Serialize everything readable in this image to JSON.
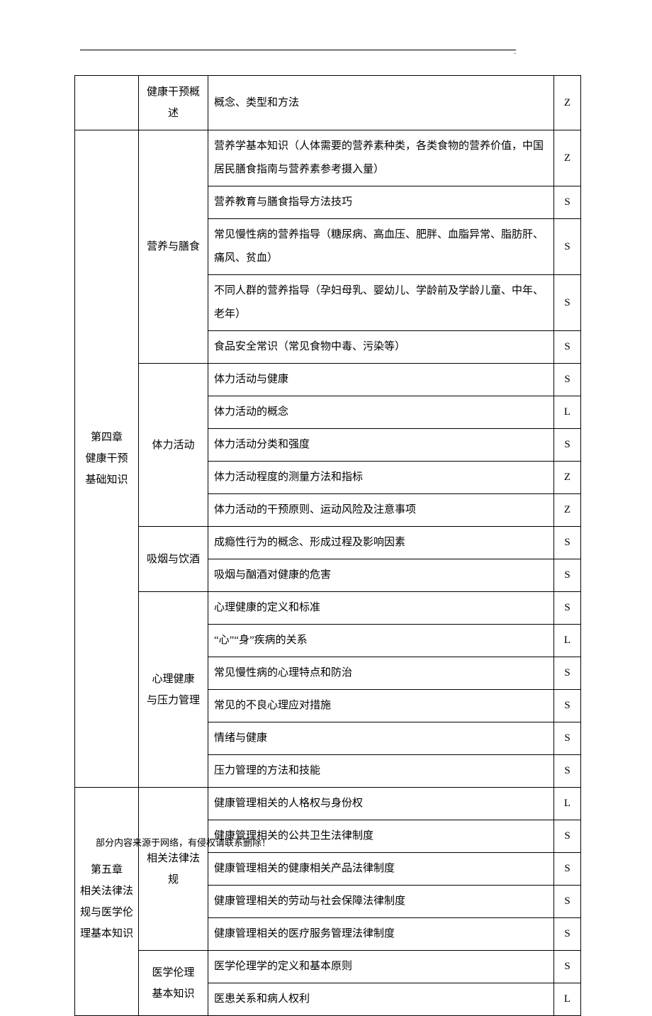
{
  "header": {
    "dot": "."
  },
  "table": {
    "rows": [
      {
        "chapter": "",
        "section": "健康干预概述",
        "content": "概念、类型和方法",
        "code": "Z",
        "chapter_rowspan": 1,
        "section_rowspan": 1
      },
      {
        "chapter": "第四章\n健康干预\n基础知识",
        "section": "营养与膳食",
        "content": "营养学基本知识（人体需要的营养素种类，各类食物的营养价值，中国居民膳食指南与营养素参考摄入量）",
        "code": "Z",
        "chapter_rowspan": 18,
        "section_rowspan": 5
      },
      {
        "content": "营养教育与膳食指导方法技巧",
        "code": "S"
      },
      {
        "content": "常见慢性病的营养指导（糖尿病、高血压、肥胖、血脂异常、脂肪肝、痛风、贫血）",
        "code": "S"
      },
      {
        "content": "不同人群的营养指导（孕妇母乳、婴幼儿、学龄前及学龄儿童、中年、老年）",
        "code": "S"
      },
      {
        "content": "食品安全常识（常见食物中毒、污染等）",
        "code": "S"
      },
      {
        "section": "体力活动",
        "content": "体力活动与健康",
        "code": "S",
        "section_rowspan": 5
      },
      {
        "content": "体力活动的概念",
        "code": "L"
      },
      {
        "content": "体力活动分类和强度",
        "code": "S"
      },
      {
        "content": "体力活动程度的测量方法和指标",
        "code": "Z"
      },
      {
        "content": "体力活动的干预原则、运动风险及注意事项",
        "code": "Z"
      },
      {
        "section": "吸烟与饮酒",
        "content": "成瘾性行为的概念、形成过程及影响因素",
        "code": "S",
        "section_rowspan": 2
      },
      {
        "content": "吸烟与酗酒对健康的危害",
        "code": "S"
      },
      {
        "section": "心理健康\n与压力管理",
        "content": "心理健康的定义和标准",
        "code": "S",
        "section_rowspan": 6
      },
      {
        "content": "“心”“身”疾病的关系",
        "code": "L"
      },
      {
        "content": "常见慢性病的心理特点和防治",
        "code": "S"
      },
      {
        "content": "常见的不良心理应对措施",
        "code": "S"
      },
      {
        "content": "情绪与健康",
        "code": "S"
      },
      {
        "content": "压力管理的方法和技能",
        "code": "S"
      },
      {
        "chapter": "第五章\n相关法律法\n规与医学伦\n理基本知识",
        "section": "相关法律法规",
        "content": "健康管理相关的人格权与身份权",
        "code": "L",
        "chapter_rowspan": 7,
        "section_rowspan": 5
      },
      {
        "content": "健康管理相关的公共卫生法律制度",
        "code": "S"
      },
      {
        "content": "健康管理相关的健康相关产品法律制度",
        "code": "S"
      },
      {
        "content": "健康管理相关的劳动与社会保障法律制度",
        "code": "S"
      },
      {
        "content": "健康管理相关的医疗服务管理法律制度",
        "code": "S"
      },
      {
        "section": "医学伦理\n基本知识",
        "content": "医学伦理学的定义和基本原则",
        "code": "S",
        "section_rowspan": 2
      },
      {
        "content": "医患关系和病人权利",
        "code": "L"
      }
    ]
  },
  "footer": {
    "note": "部分内容来源于网络，有侵权请联系删除！"
  }
}
